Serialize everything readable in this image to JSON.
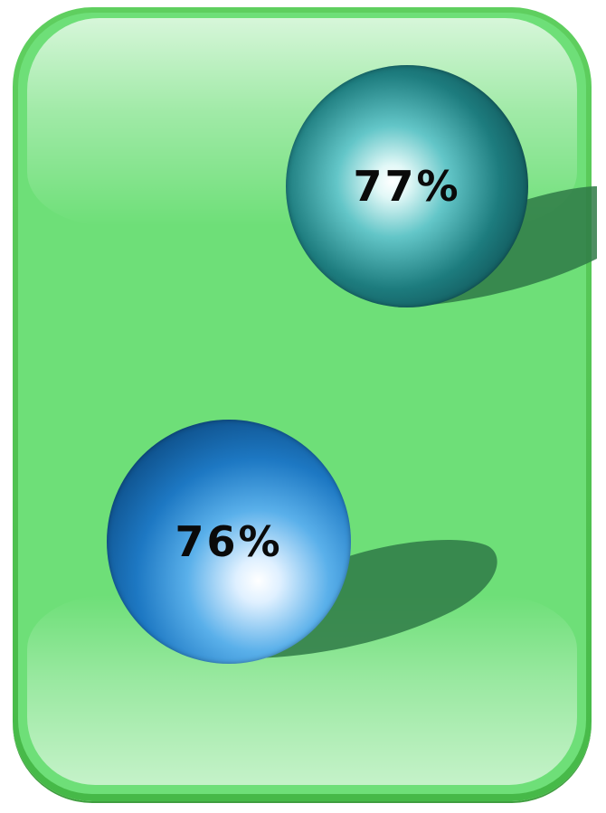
{
  "items": [
    {
      "label": "77%",
      "value": 77,
      "color": "#1d7c7e",
      "icon": "teal-sphere"
    },
    {
      "label": "76%",
      "value": 76,
      "color": "#1d78c3",
      "icon": "blue-sphere"
    }
  ],
  "colors": {
    "panel": "#6edf78",
    "panel_border": "#46b948"
  }
}
